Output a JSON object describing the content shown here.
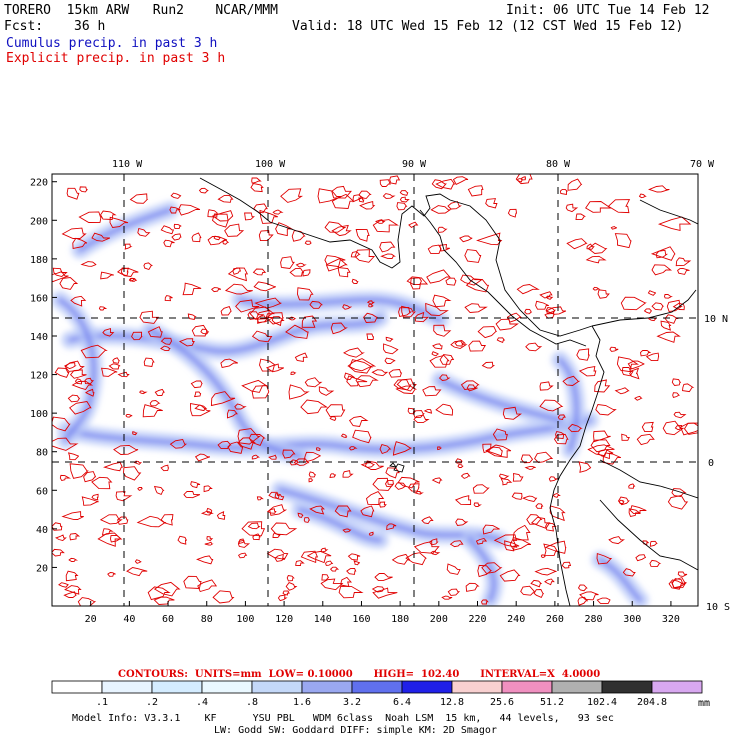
{
  "header": {
    "model": "TORERO  15km ARW   Run2    NCAR/MMM",
    "init": "Init: 06 UTC Tue 14 Feb 12",
    "fcst_label": "Fcst:",
    "fcst_value": "36 h",
    "valid": "Valid: 18 UTC Wed 15 Feb 12 (12 CST Wed 15 Feb 12)",
    "cumulus": "Cumulus precip. in past 3 h",
    "explicit": "Explicit precip. in past 3 h"
  },
  "colors": {
    "cumulus": "#1010c0",
    "explicit": "#e00000",
    "grid": "#000000"
  },
  "map": {
    "lon_labels": [
      "110 W",
      "100 W",
      "90 W",
      "80 W",
      "70 W"
    ],
    "lat_labels": [
      "10 N",
      "0",
      "10 S"
    ],
    "y_ticks": [
      "220",
      "200",
      "180",
      "160",
      "140",
      "120",
      "100",
      "80",
      "60",
      "40",
      "20"
    ],
    "x_ticks": [
      "20",
      "40",
      "60",
      "80",
      "100",
      "120",
      "140",
      "160",
      "180",
      "200",
      "220",
      "240",
      "260",
      "280",
      "300",
      "320"
    ]
  },
  "contours_line": {
    "label": "CONTOURS:",
    "units": "UNITS=mm",
    "low": "LOW= 0.10000",
    "high": "HIGH=  102.40",
    "interval": "INTERVAL=X  4.0000"
  },
  "legend": {
    "labels": [
      ".1",
      ".2",
      ".4",
      ".8",
      "1.6",
      "3.2",
      "6.4",
      "12.8",
      "25.6",
      "51.2",
      "102.4",
      "204.8"
    ],
    "unit": "mm",
    "colors": [
      "#ffffff",
      "#e8f4ff",
      "#d4ecff",
      "#eaf8ff",
      "#c4d8f8",
      "#9aa8f0",
      "#6070ee",
      "#2020e8",
      "#f8d0d0",
      "#f090c0",
      "#b0b0b0",
      "#303030",
      "#d8a8f0"
    ]
  },
  "footer": {
    "line1": "Model Info: V3.3.1    KF      YSU PBL   WDM 6class  Noah LSM  15 km,   44 levels,   93 sec",
    "line2": "LW: Godd SW: Goddard DIFF: simple KM: 2D Smagor"
  }
}
